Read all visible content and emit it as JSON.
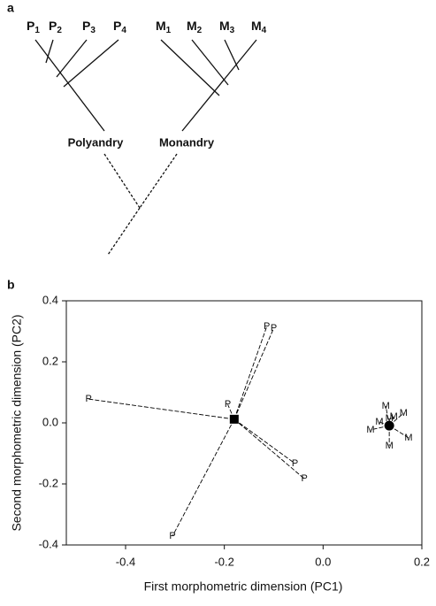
{
  "diagram": {
    "panel_label": "a",
    "taxa": [
      {
        "letter": "P",
        "index": "1"
      },
      {
        "letter": "P",
        "index": "2"
      },
      {
        "letter": "P",
        "index": "3"
      },
      {
        "letter": "P",
        "index": "4"
      },
      {
        "letter": "M",
        "index": "1"
      },
      {
        "letter": "M",
        "index": "2"
      },
      {
        "letter": "M",
        "index": "3"
      },
      {
        "letter": "M",
        "index": "4"
      }
    ],
    "clades": [
      "Polyandry",
      "Monandry"
    ]
  },
  "chart_data": {
    "type": "scatter",
    "panel_label": "b",
    "x_label": "First morphometric dimension (PC1)",
    "y_label": "Second morphometric dimension (PC2)",
    "xlim": [
      -0.52,
      0.2
    ],
    "ylim": [
      -0.4,
      0.4
    ],
    "xticks": [
      -0.4,
      -0.2,
      {
        "value": 0,
        "label": "0.0"
      },
      0.2
    ],
    "yticks": [
      -0.4,
      -0.2,
      {
        "value": 0,
        "label": "0.0"
      },
      0.2,
      0.4
    ],
    "series": [
      {
        "point_label": "P",
        "color": "#000000",
        "centroid_marker": "square",
        "centroid": [
          -0.18,
          0.012
        ],
        "x": [
          -0.475,
          -0.193,
          -0.114,
          -0.1,
          -0.057,
          -0.038,
          -0.305
        ],
        "y": [
          0.078,
          0.06,
          0.316,
          0.31,
          -0.133,
          -0.183,
          -0.371
        ]
      },
      {
        "point_label": "M",
        "color": "#000000",
        "centroid_marker": "circle",
        "centroid": [
          0.134,
          -0.009
        ],
        "x": [
          0.127,
          0.163,
          0.143,
          0.134,
          0.114,
          0.096,
          0.173,
          0.134
        ],
        "y": [
          0.055,
          0.032,
          0.02,
          0.014,
          0.003,
          -0.023,
          -0.049,
          -0.075
        ]
      }
    ]
  }
}
